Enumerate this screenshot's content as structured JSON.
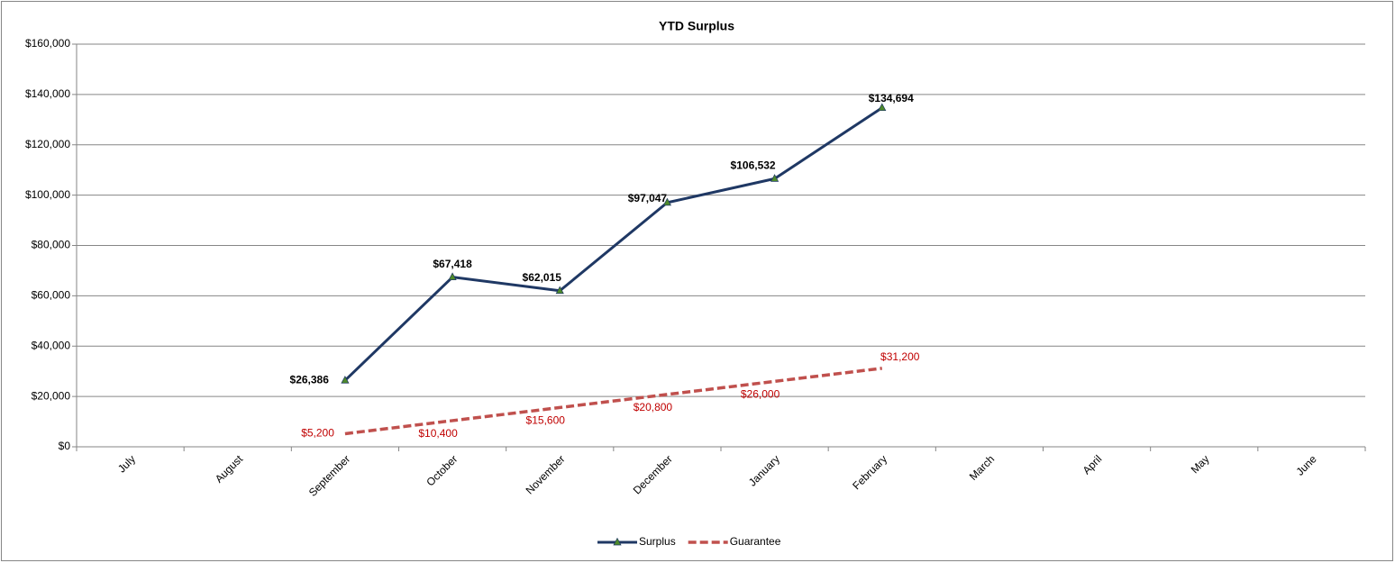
{
  "chart_data": {
    "type": "line",
    "title": "YTD Surplus",
    "categories": [
      "July",
      "August",
      "September",
      "October",
      "November",
      "December",
      "January",
      "February",
      "March",
      "April",
      "May",
      "June"
    ],
    "series": [
      {
        "name": "Surplus",
        "color": "#1f3864",
        "marker_color": "#4e8a2a",
        "dash": false,
        "values": [
          null,
          null,
          26386,
          67418,
          62015,
          97047,
          106532,
          134694,
          null,
          null,
          null,
          null
        ],
        "value_labels": [
          null,
          null,
          "$26,386",
          "$67,418",
          "$62,015",
          "$97,047",
          "$106,532",
          "$134,694",
          null,
          null,
          null,
          null
        ]
      },
      {
        "name": "Guarantee",
        "color": "#c0504d",
        "label_color": "#c00000",
        "dash": true,
        "values": [
          null,
          null,
          5200,
          10400,
          15600,
          20800,
          26000,
          31200,
          null,
          null,
          null,
          null
        ],
        "value_labels": [
          null,
          null,
          "$5,200",
          "$10,400",
          "$15,600",
          "$20,800",
          "$26,000",
          "$31,200",
          null,
          null,
          null,
          null
        ]
      }
    ],
    "ylim": [
      0,
      160000
    ],
    "yticks": [
      {
        "value": 0,
        "label": "$0"
      },
      {
        "value": 20000,
        "label": "$20,000"
      },
      {
        "value": 40000,
        "label": "$40,000"
      },
      {
        "value": 60000,
        "label": "$60,000"
      },
      {
        "value": 80000,
        "label": "$80,000"
      },
      {
        "value": 100000,
        "label": "$100,000"
      },
      {
        "value": 120000,
        "label": "$120,000"
      },
      {
        "value": 140000,
        "label": "$140,000"
      },
      {
        "value": 160000,
        "label": "$160,000"
      }
    ],
    "grid": true,
    "legend": "bottom"
  }
}
